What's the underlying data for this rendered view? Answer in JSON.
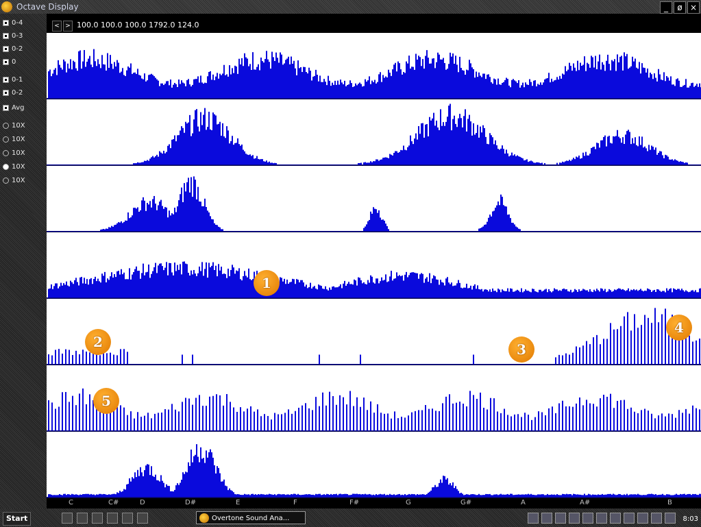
{
  "window": {
    "title": "Octave Display",
    "min_label": "_",
    "max_label": "ø",
    "close_label": "×"
  },
  "left_panel": {
    "checkboxes": [
      {
        "label": "0-4",
        "checked": true
      },
      {
        "label": "0-3",
        "checked": true
      },
      {
        "label": "0-2",
        "checked": true
      },
      {
        "label": "0",
        "checked": true
      },
      {
        "label": "0-1",
        "checked": true
      },
      {
        "label": "0-2",
        "checked": true
      },
      {
        "label": "Avg",
        "checked": true
      }
    ],
    "radios": [
      {
        "label": "10X",
        "checked": false
      },
      {
        "label": "10X",
        "checked": false
      },
      {
        "label": "10X",
        "checked": false
      },
      {
        "label": "10X",
        "checked": true
      },
      {
        "label": "10X",
        "checked": false
      }
    ]
  },
  "toolbar": {
    "back_label": "<",
    "forward_label": ">",
    "readout": "100.0 100.0 100.0 1792.0 124.0"
  },
  "plot": {
    "bar_color": "#0a0adc",
    "background": "#ffffff",
    "separator_color": "#0a0a96",
    "panel_count": 7
  },
  "callouts": [
    "1",
    "2",
    "3",
    "4",
    "5"
  ],
  "x_axis": {
    "tick_labels": [
      "C",
      "C#",
      "D",
      "D#",
      "E",
      "F",
      "F#",
      "G",
      "G#",
      "A",
      "A#",
      "B"
    ]
  },
  "taskbar": {
    "start_label": "Start",
    "app_label": "Overtone Sound Ana...",
    "clock": "8:03"
  }
}
